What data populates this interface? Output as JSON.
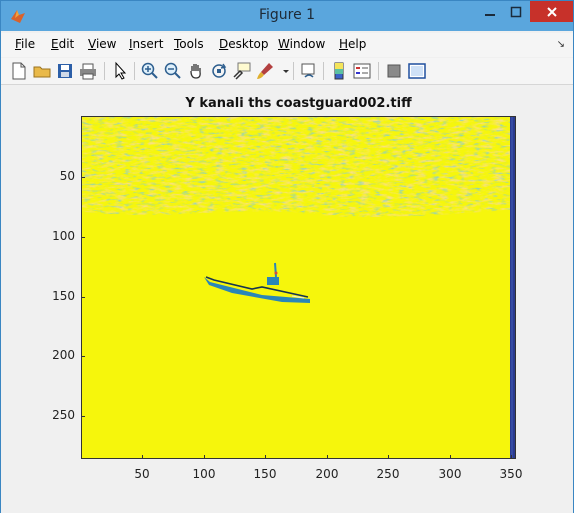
{
  "window": {
    "title": "Figure 1"
  },
  "menu": {
    "items": [
      {
        "label": "File",
        "underline": "F"
      },
      {
        "label": "Edit",
        "underline": "E"
      },
      {
        "label": "View",
        "underline": "V"
      },
      {
        "label": "Insert",
        "underline": "I"
      },
      {
        "label": "Tools",
        "underline": "T"
      },
      {
        "label": "Desktop",
        "underline": "D"
      },
      {
        "label": "Window",
        "underline": "W"
      },
      {
        "label": "Help",
        "underline": "H"
      }
    ],
    "dock_glyph": "↘"
  },
  "toolbar": {
    "icons": [
      "new-figure-icon",
      "open-file-icon",
      "save-icon",
      "print-icon",
      "pointer-icon",
      "zoom-in-icon",
      "zoom-out-icon",
      "pan-icon",
      "rotate-icon",
      "data-cursor-icon",
      "brush-icon",
      "link-plot-icon",
      "colorbar-icon",
      "legend-icon",
      "hide-tools-icon",
      "show-tools-icon"
    ]
  },
  "plot": {
    "title": "Y kanali ths coastguard002.tiff",
    "y_ticks": [
      "50",
      "100",
      "150",
      "200",
      "250"
    ],
    "x_ticks": [
      "50",
      "100",
      "150",
      "200",
      "250",
      "300",
      "350"
    ],
    "colors": {
      "background": "#f6f60c",
      "texture_orange": "#f4b86a",
      "texture_teal": "#3aa6b8",
      "dark_blue": "#2b3b8f"
    }
  }
}
